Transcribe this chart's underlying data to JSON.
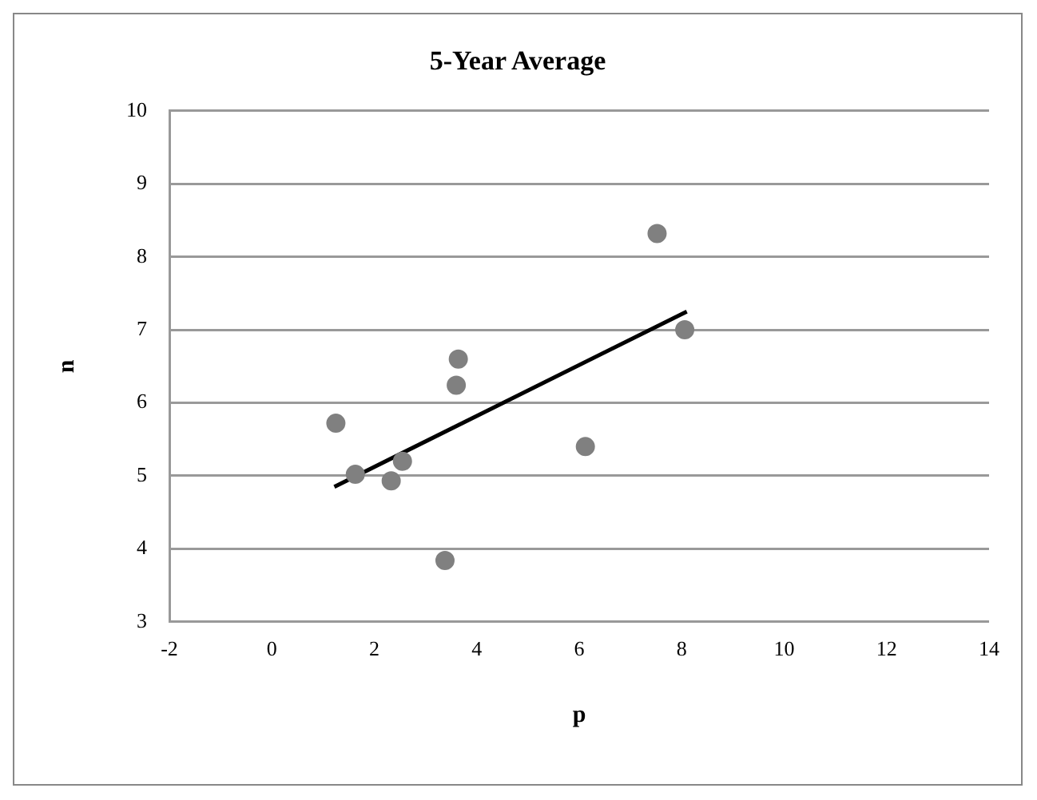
{
  "chart_data": {
    "type": "scatter",
    "title": "5-Year Average",
    "xlabel": "p",
    "ylabel": "n",
    "series": [
      {
        "color": "#808080",
        "marker": "circle",
        "x": [
          1.25,
          1.63,
          2.33,
          2.55,
          3.38,
          3.64,
          3.6,
          6.12,
          7.52,
          8.06
        ],
        "values": [
          5.72,
          5.02,
          4.93,
          5.2,
          3.84,
          6.6,
          6.24,
          5.4,
          8.32,
          7.0
        ]
      },
      {
        "type": "line",
        "marker": "none",
        "color": "#000000",
        "x": [
          1.22,
          8.1
        ],
        "values": [
          4.85,
          7.25
        ]
      }
    ],
    "xlim": [
      -2,
      14
    ],
    "xticks": [
      -2,
      0,
      2,
      4,
      6,
      8,
      10,
      12,
      14
    ],
    "ylim": [
      3,
      10
    ],
    "yticks": [
      3,
      4,
      5,
      6,
      7,
      8,
      9,
      10
    ],
    "grid": "y",
    "legend": false
  }
}
